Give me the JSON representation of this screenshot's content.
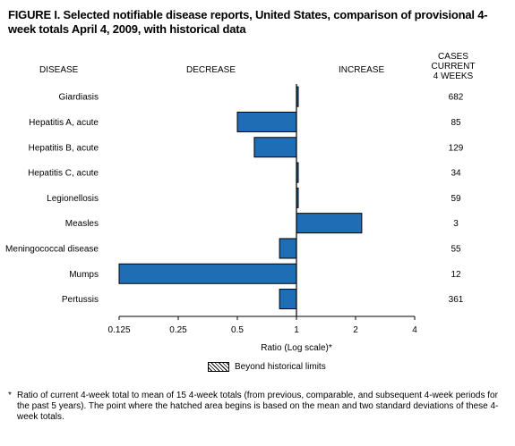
{
  "title": "FIGURE I. Selected notifiable disease reports, United States, comparison of provisional 4-week totals April 4, 2009, with historical data",
  "headers": {
    "disease": "DISEASE",
    "decrease": "DECREASE",
    "increase": "INCREASE",
    "cases_line1": "CASES CURRENT",
    "cases_line2": "4 WEEKS"
  },
  "chart_data": {
    "type": "bar",
    "orientation": "horizontal",
    "x_scale": "log2",
    "xlabel": "Ratio (Log scale)*",
    "xlim": [
      0.125,
      4
    ],
    "xticks": [
      0.125,
      0.25,
      0.5,
      1,
      2,
      4
    ],
    "xtick_labels": [
      "0.125",
      "0.25",
      "0.5",
      "1",
      "2",
      "4"
    ],
    "baseline": 1,
    "categories": [
      "Giardiasis",
      "Hepatitis A, acute",
      "Hepatitis B, acute",
      "Hepatitis C, acute",
      "Legionellosis",
      "Measles",
      "Meningococcal disease",
      "Mumps",
      "Pertussis"
    ],
    "values": [
      1.0,
      0.5,
      0.61,
      1.0,
      1.0,
      2.15,
      0.82,
      0.125,
      0.82
    ],
    "cases": [
      "682",
      "85",
      "129",
      "34",
      "59",
      "3",
      "55",
      "12",
      "361"
    ],
    "bar_color": "#1f6db5",
    "grid": false
  },
  "legend": {
    "label": "Beyond historical limits"
  },
  "footnote": {
    "mark": "*",
    "text": "Ratio of current 4-week total to mean of 15 4-week totals (from previous, comparable, and subsequent 4-week periods for the past 5 years). The point where the hatched area begins is based on the mean and two standard deviations of these 4-week totals."
  }
}
